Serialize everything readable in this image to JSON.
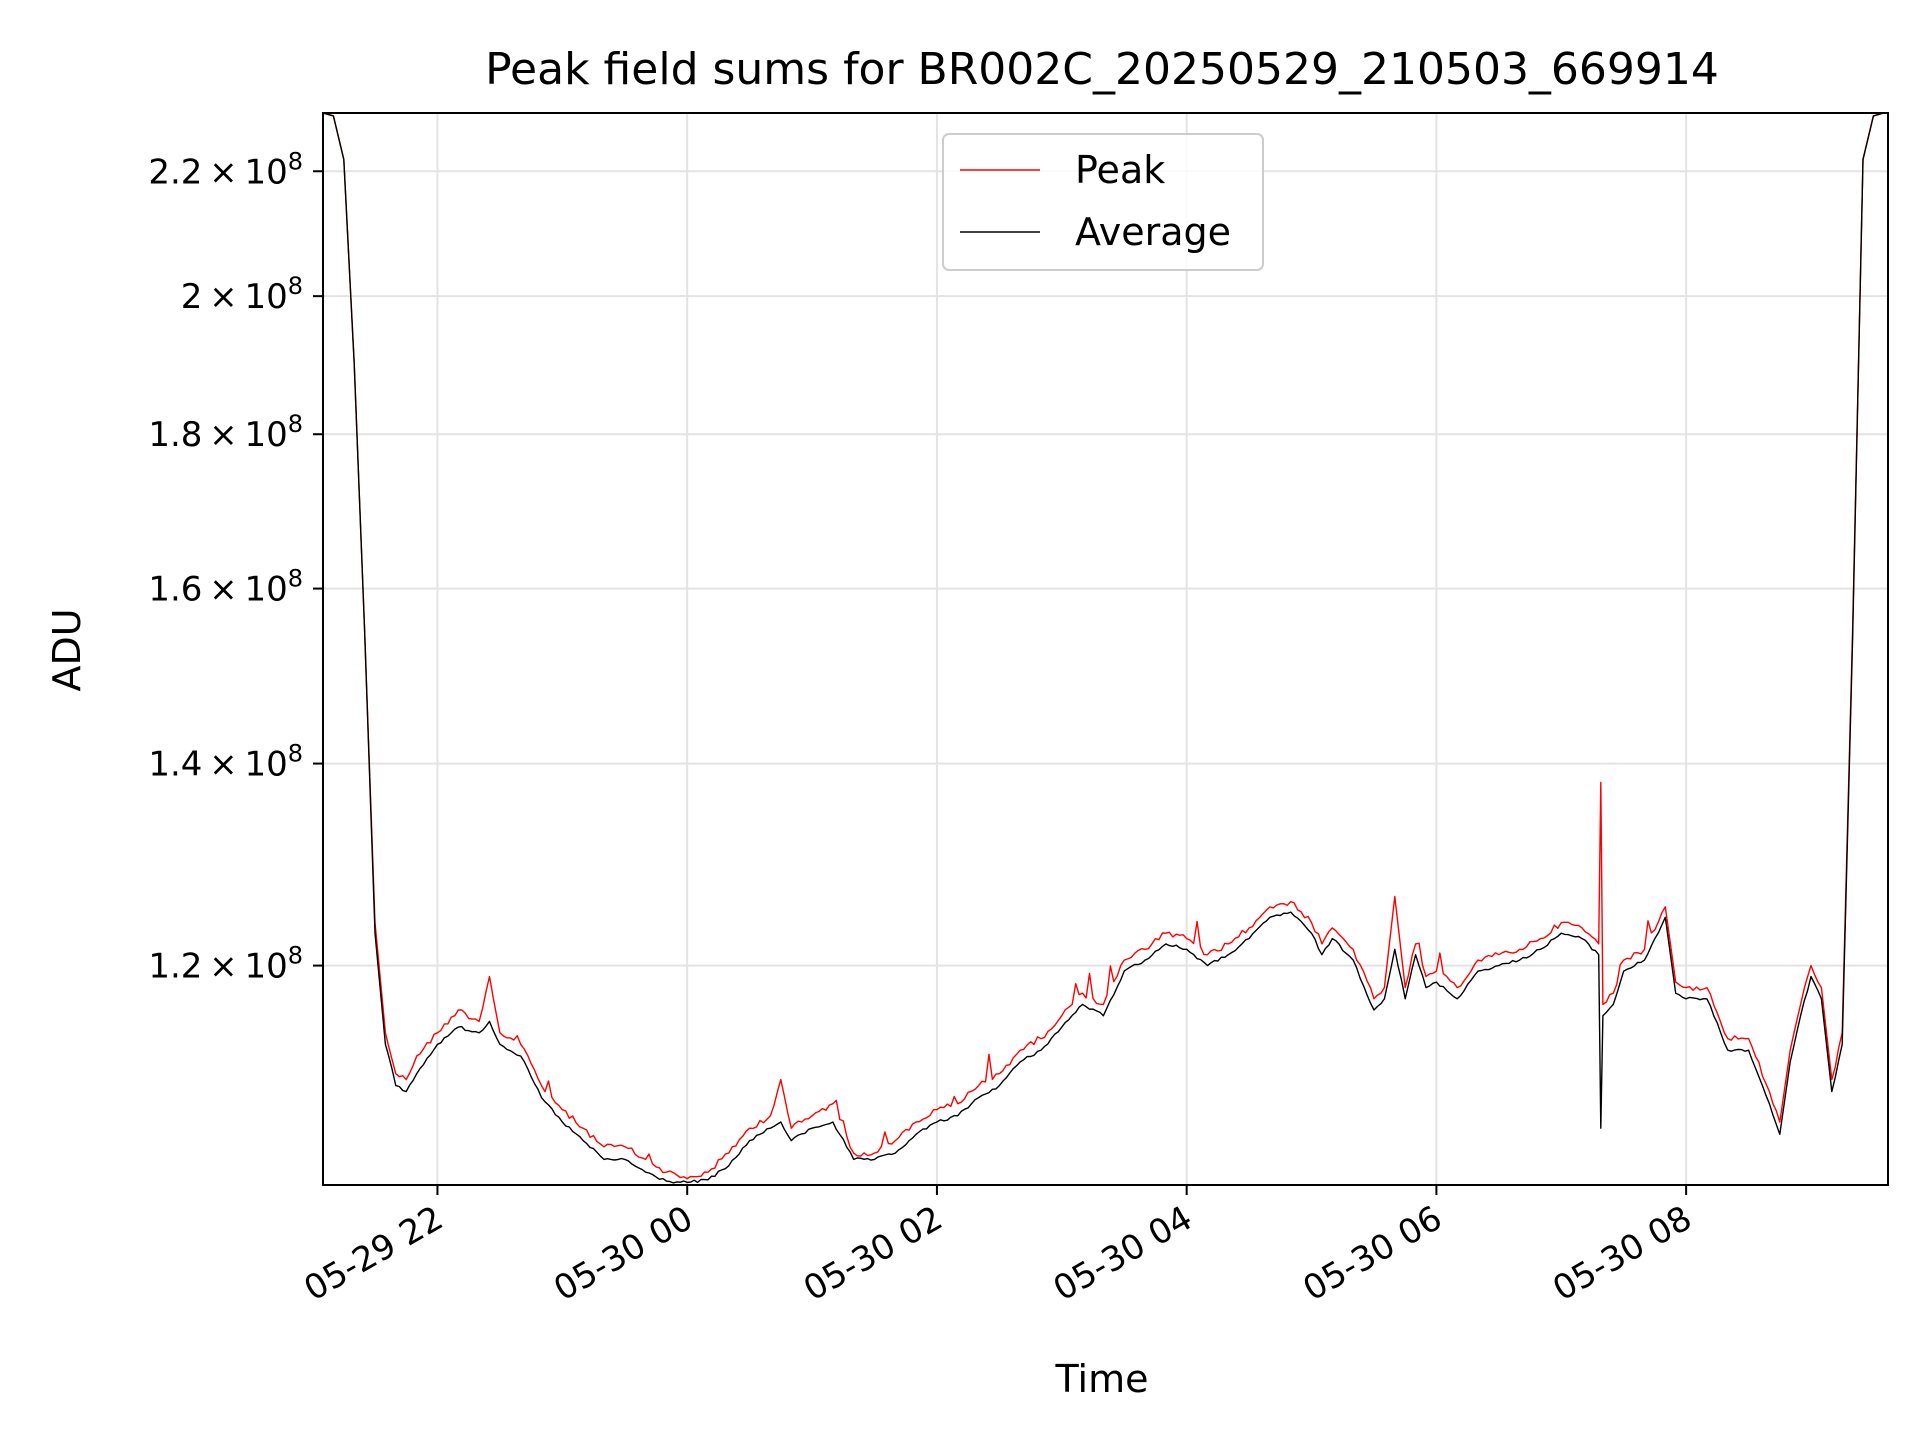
{
  "chart_data": {
    "type": "line",
    "title": "Peak field sums for BR002C_20250529_210503_669914",
    "xlabel": "Time",
    "ylabel": "ADU",
    "y_scale": "log",
    "xlim": [
      "2025-05-29 21:05",
      "2025-05-30 09:37"
    ],
    "ylim": [
      101500000,
      230000000
    ],
    "grid": true,
    "legend_position": "top-center",
    "x_ticks": [
      {
        "value": "2025-05-29 22:00",
        "label": "05-29 22"
      },
      {
        "value": "2025-05-30 00:00",
        "label": "05-30 00"
      },
      {
        "value": "2025-05-30 02:00",
        "label": "05-30 02"
      },
      {
        "value": "2025-05-30 04:00",
        "label": "05-30 04"
      },
      {
        "value": "2025-05-30 06:00",
        "label": "05-30 06"
      },
      {
        "value": "2025-05-30 08:00",
        "label": "05-30 08"
      }
    ],
    "y_ticks": [
      {
        "value": 120000000,
        "mant": "1.2",
        "exp": "8"
      },
      {
        "value": 140000000,
        "mant": "1.4",
        "exp": "8"
      },
      {
        "value": 160000000,
        "mant": "1.6",
        "exp": "8"
      },
      {
        "value": 180000000,
        "mant": "1.8",
        "exp": "8"
      },
      {
        "value": 200000000,
        "mant": "2",
        "exp": "8"
      },
      {
        "value": 220000000,
        "mant": "2.2",
        "exp": "8"
      }
    ],
    "series": [
      {
        "name": "Peak",
        "color": "#ff0000",
        "x": [
          "2025-05-29 21:05",
          "2025-05-29 21:10",
          "2025-05-29 21:15",
          "2025-05-29 21:20",
          "2025-05-29 21:25",
          "2025-05-29 21:30",
          "2025-05-29 21:35",
          "2025-05-29 21:40",
          "2025-05-29 21:45",
          "2025-05-29 21:50",
          "2025-05-29 22:00",
          "2025-05-29 22:10",
          "2025-05-29 22:20",
          "2025-05-29 22:25",
          "2025-05-29 22:30",
          "2025-05-29 22:40",
          "2025-05-29 22:50",
          "2025-05-29 23:00",
          "2025-05-29 23:10",
          "2025-05-29 23:20",
          "2025-05-29 23:30",
          "2025-05-29 23:40",
          "2025-05-29 23:50",
          "2025-05-30 00:00",
          "2025-05-30 00:10",
          "2025-05-30 00:20",
          "2025-05-30 00:30",
          "2025-05-30 00:40",
          "2025-05-30 00:45",
          "2025-05-30 00:50",
          "2025-05-30 01:00",
          "2025-05-30 01:10",
          "2025-05-30 01:20",
          "2025-05-30 01:30",
          "2025-05-30 01:40",
          "2025-05-30 01:50",
          "2025-05-30 02:00",
          "2025-05-30 02:10",
          "2025-05-30 02:20",
          "2025-05-30 02:30",
          "2025-05-30 02:40",
          "2025-05-30 02:50",
          "2025-05-30 03:00",
          "2025-05-30 03:10",
          "2025-05-30 03:20",
          "2025-05-30 03:30",
          "2025-05-30 03:40",
          "2025-05-30 03:50",
          "2025-05-30 04:00",
          "2025-05-30 04:10",
          "2025-05-30 04:20",
          "2025-05-30 04:30",
          "2025-05-30 04:40",
          "2025-05-30 04:50",
          "2025-05-30 05:00",
          "2025-05-30 05:05",
          "2025-05-30 05:10",
          "2025-05-30 05:20",
          "2025-05-30 05:30",
          "2025-05-30 05:35",
          "2025-05-30 05:40",
          "2025-05-30 05:45",
          "2025-05-30 05:50",
          "2025-05-30 05:55",
          "2025-05-30 06:00",
          "2025-05-30 06:10",
          "2025-05-30 06:20",
          "2025-05-30 06:30",
          "2025-05-30 06:40",
          "2025-05-30 06:50",
          "2025-05-30 07:00",
          "2025-05-30 07:10",
          "2025-05-30 07:18",
          "2025-05-30 07:19",
          "2025-05-30 07:20",
          "2025-05-30 07:25",
          "2025-05-30 07:30",
          "2025-05-30 07:40",
          "2025-05-30 07:50",
          "2025-05-30 07:55",
          "2025-05-30 08:00",
          "2025-05-30 08:10",
          "2025-05-30 08:20",
          "2025-05-30 08:30",
          "2025-05-30 08:40",
          "2025-05-30 08:45",
          "2025-05-30 08:50",
          "2025-05-30 08:55",
          "2025-05-30 09:00",
          "2025-05-30 09:05",
          "2025-05-30 09:10",
          "2025-05-30 09:15",
          "2025-05-30 09:20",
          "2025-05-30 09:25",
          "2025-05-30 09:30",
          "2025-05-30 09:35"
        ],
        "values": [
          230000000,
          229500000,
          222000000,
          190000000,
          155000000,
          124000000,
          114000000,
          110500000,
          110000000,
          112000000,
          114000000,
          116000000,
          115000000,
          119000000,
          114000000,
          113000000,
          109500000,
          107500000,
          106000000,
          104500000,
          104500000,
          103500000,
          102500000,
          102000000,
          102500000,
          104000000,
          106000000,
          107000000,
          110000000,
          106000000,
          107000000,
          108000000,
          104000000,
          104000000,
          105000000,
          106500000,
          107500000,
          108000000,
          109500000,
          110500000,
          112500000,
          113500000,
          115500000,
          117500000,
          116500000,
          120500000,
          121500000,
          123000000,
          122500000,
          121000000,
          122000000,
          123500000,
          125500000,
          126000000,
          124000000,
          122000000,
          123500000,
          121500000,
          117000000,
          118000000,
          126500000,
          118000000,
          122000000,
          119000000,
          119500000,
          118000000,
          120500000,
          121000000,
          121500000,
          122500000,
          124000000,
          123500000,
          122000000,
          138000000,
          116500000,
          117500000,
          120500000,
          121500000,
          125500000,
          118500000,
          118000000,
          118000000,
          113500000,
          113500000,
          109000000,
          106500000,
          112500000,
          116500000,
          120000000,
          118000000,
          110000000,
          114000000,
          155000000,
          222000000,
          229500000,
          230000000
        ]
      },
      {
        "name": "Average",
        "color": "#000000",
        "x": [
          "2025-05-29 21:05",
          "2025-05-29 21:10",
          "2025-05-29 21:15",
          "2025-05-29 21:20",
          "2025-05-29 21:25",
          "2025-05-29 21:30",
          "2025-05-29 21:35",
          "2025-05-29 21:40",
          "2025-05-29 21:45",
          "2025-05-29 21:50",
          "2025-05-29 22:00",
          "2025-05-29 22:10",
          "2025-05-29 22:20",
          "2025-05-29 22:25",
          "2025-05-29 22:30",
          "2025-05-29 22:40",
          "2025-05-29 22:50",
          "2025-05-29 23:00",
          "2025-05-29 23:10",
          "2025-05-29 23:20",
          "2025-05-29 23:30",
          "2025-05-29 23:40",
          "2025-05-29 23:50",
          "2025-05-30 00:00",
          "2025-05-30 00:10",
          "2025-05-30 00:20",
          "2025-05-30 00:30",
          "2025-05-30 00:40",
          "2025-05-30 00:45",
          "2025-05-30 00:50",
          "2025-05-30 01:00",
          "2025-05-30 01:10",
          "2025-05-30 01:20",
          "2025-05-30 01:30",
          "2025-05-30 01:40",
          "2025-05-30 01:50",
          "2025-05-30 02:00",
          "2025-05-30 02:10",
          "2025-05-30 02:20",
          "2025-05-30 02:30",
          "2025-05-30 02:40",
          "2025-05-30 02:50",
          "2025-05-30 03:00",
          "2025-05-30 03:10",
          "2025-05-30 03:20",
          "2025-05-30 03:30",
          "2025-05-30 03:40",
          "2025-05-30 03:50",
          "2025-05-30 04:00",
          "2025-05-30 04:10",
          "2025-05-30 04:20",
          "2025-05-30 04:30",
          "2025-05-30 04:40",
          "2025-05-30 04:50",
          "2025-05-30 05:00",
          "2025-05-30 05:05",
          "2025-05-30 05:10",
          "2025-05-30 05:20",
          "2025-05-30 05:30",
          "2025-05-30 05:35",
          "2025-05-30 05:40",
          "2025-05-30 05:45",
          "2025-05-30 05:50",
          "2025-05-30 05:55",
          "2025-05-30 06:00",
          "2025-05-30 06:10",
          "2025-05-30 06:20",
          "2025-05-30 06:30",
          "2025-05-30 06:40",
          "2025-05-30 06:50",
          "2025-05-30 07:00",
          "2025-05-30 07:10",
          "2025-05-30 07:18",
          "2025-05-30 07:19",
          "2025-05-30 07:20",
          "2025-05-30 07:25",
          "2025-05-30 07:30",
          "2025-05-30 07:40",
          "2025-05-30 07:50",
          "2025-05-30 07:55",
          "2025-05-30 08:00",
          "2025-05-30 08:10",
          "2025-05-30 08:20",
          "2025-05-30 08:30",
          "2025-05-30 08:40",
          "2025-05-30 08:45",
          "2025-05-30 08:50",
          "2025-05-30 08:55",
          "2025-05-30 09:00",
          "2025-05-30 09:05",
          "2025-05-30 09:10",
          "2025-05-30 09:15",
          "2025-05-30 09:20",
          "2025-05-30 09:25",
          "2025-05-30 09:30",
          "2025-05-30 09:35"
        ],
        "values": [
          230000000,
          229500000,
          222000000,
          190000000,
          155000000,
          123000000,
          113000000,
          109500000,
          109000000,
          110500000,
          113000000,
          114500000,
          114000000,
          115000000,
          113000000,
          112000000,
          108500000,
          106500000,
          105000000,
          103500000,
          103500000,
          102500000,
          101800000,
          101700000,
          101900000,
          103000000,
          105000000,
          106000000,
          106500000,
          105000000,
          106000000,
          106500000,
          103500000,
          103500000,
          104000000,
          105500000,
          106500000,
          107000000,
          108500000,
          109500000,
          111500000,
          112500000,
          114500000,
          116500000,
          115500000,
          119500000,
          120500000,
          122000000,
          121500000,
          120000000,
          121000000,
          122500000,
          124500000,
          125000000,
          123000000,
          121000000,
          122500000,
          120500000,
          116000000,
          117000000,
          121500000,
          117000000,
          121000000,
          118000000,
          118500000,
          117000000,
          119500000,
          120000000,
          120500000,
          121500000,
          123000000,
          122500000,
          121000000,
          106000000,
          115500000,
          116500000,
          119500000,
          120500000,
          124500000,
          117500000,
          117000000,
          117000000,
          112500000,
          112500000,
          108000000,
          105500000,
          111500000,
          115500000,
          119000000,
          117000000,
          109000000,
          113000000,
          154000000,
          222000000,
          229500000,
          230000000
        ]
      }
    ]
  }
}
